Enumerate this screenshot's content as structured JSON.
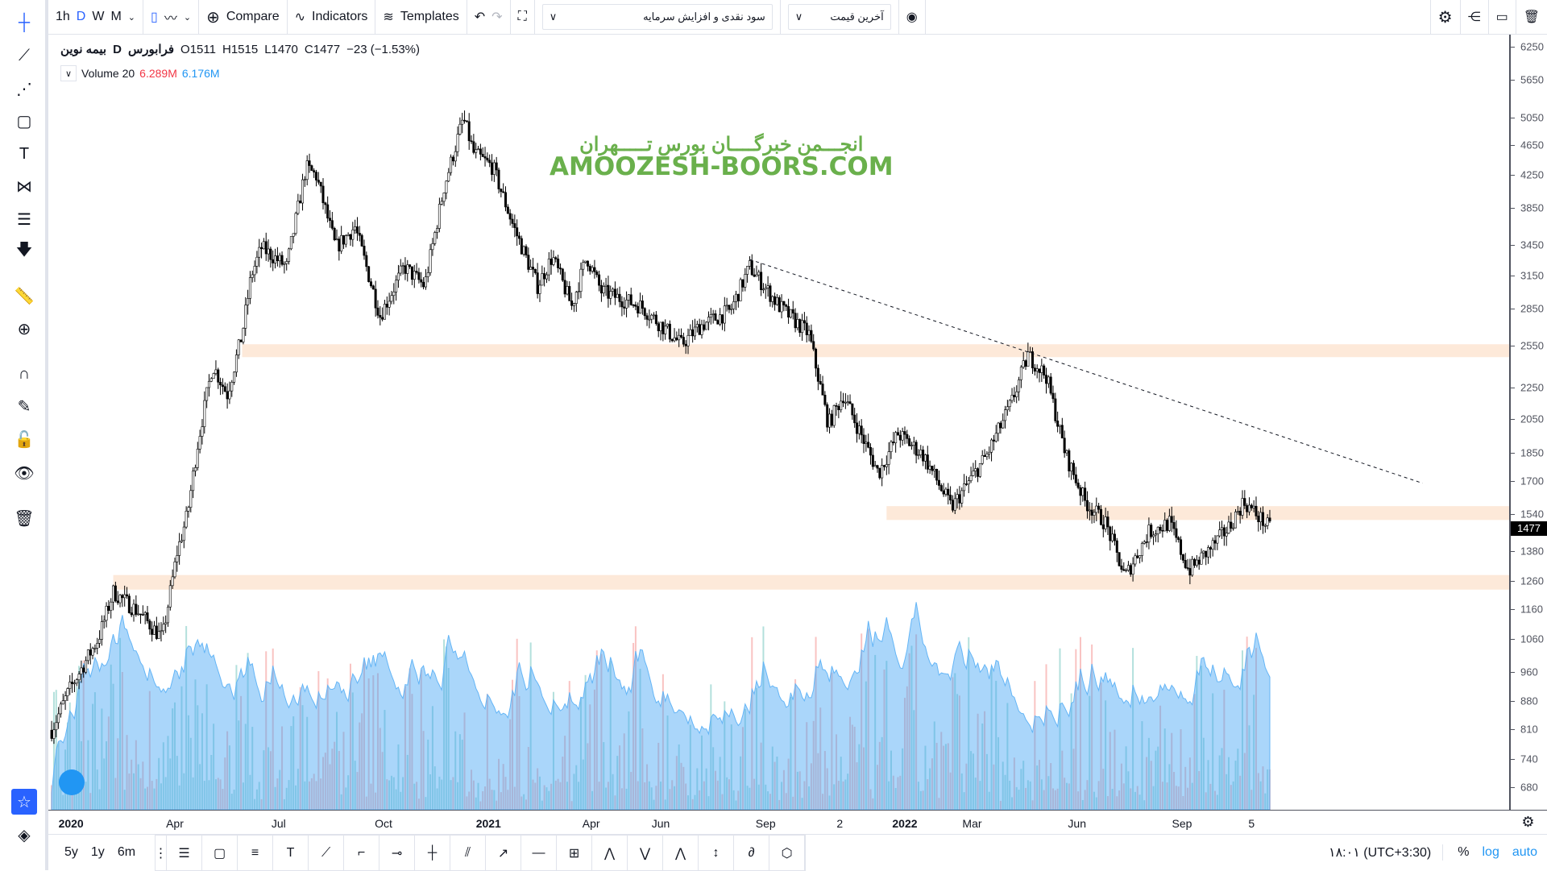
{
  "toolbar": {
    "intervals": [
      "1h",
      "D",
      "W",
      "M"
    ],
    "active_interval": "D",
    "compare": "Compare",
    "indicators": "Indicators",
    "templates": "Templates",
    "indicator_select": "سود نقدی و افزایش سرمایه",
    "price_select": "آخرین قیمت"
  },
  "legend": {
    "symbol": "بیمه نوین",
    "interval": "D",
    "exchange": "فرابورس",
    "open": "O1511",
    "high": "H1515",
    "low": "L1470",
    "close": "C1477",
    "change": "−23 (−1.53%)"
  },
  "volume_legend": {
    "label": "Volume 20",
    "value1": "6.289M",
    "value2": "6.176M",
    "color1": "#f23645",
    "color2": "#2196f3"
  },
  "watermark": {
    "line1": "انجـــمن خبرگــــان بورس تـــــهران",
    "line2": "AMOOZESH-BOORS.COM"
  },
  "price_axis": {
    "scale": "log",
    "ticks": [
      6250,
      5650,
      5050,
      4650,
      4250,
      3850,
      3450,
      3150,
      2850,
      2550,
      2250,
      2050,
      1850,
      1700,
      1540,
      1380,
      1260,
      1160,
      1060,
      960,
      880,
      810,
      740,
      680
    ],
    "last_price": "1477"
  },
  "time_axis": {
    "labels": [
      [
        "2020",
        "2020-01-01"
      ],
      [
        "Apr",
        "2020-04-01"
      ],
      [
        "Jul",
        "2020-07-01"
      ],
      [
        "Oct",
        "2020-10-01"
      ],
      [
        "2021",
        "2021-01-01"
      ],
      [
        "Apr",
        "2021-04-01"
      ],
      [
        "Jun",
        "2021-06-01"
      ],
      [
        "Sep",
        "2021-09-01"
      ],
      [
        "2",
        "2021-11-05"
      ],
      [
        "2022",
        "2022-01-01"
      ],
      [
        "Mar",
        "2022-03-01"
      ],
      [
        "Jun",
        "2022-06-01"
      ],
      [
        "Sep",
        "2022-09-01"
      ],
      [
        "5",
        "2022-11-01"
      ]
    ]
  },
  "chart_data": {
    "type": "candlestick",
    "price_path": [
      [
        "2019-12-15",
        807
      ],
      [
        "2019-12-30",
        907
      ],
      [
        "2020-01-25",
        1062
      ],
      [
        "2020-02-07",
        1220
      ],
      [
        "2020-02-29",
        1150
      ],
      [
        "2020-03-21",
        1062
      ],
      [
        "2020-04-03",
        1374
      ],
      [
        "2020-04-12",
        1540
      ],
      [
        "2020-04-21",
        1900
      ],
      [
        "2020-05-04",
        2410
      ],
      [
        "2020-05-17",
        2205
      ],
      [
        "2020-05-30",
        2640
      ],
      [
        "2020-06-07",
        3150
      ],
      [
        "2020-06-16",
        3420
      ],
      [
        "2020-07-08",
        3230
      ],
      [
        "2020-07-25",
        4350
      ],
      [
        "2020-08-03",
        4240
      ],
      [
        "2020-08-20",
        3420
      ],
      [
        "2020-09-06",
        3640
      ],
      [
        "2020-09-28",
        2790
      ],
      [
        "2020-10-19",
        3230
      ],
      [
        "2020-11-06",
        3050
      ],
      [
        "2020-11-23",
        4100
      ],
      [
        "2020-12-10",
        5040
      ],
      [
        "2020-12-19",
        4540
      ],
      [
        "2021-01-05",
        4350
      ],
      [
        "2021-01-23",
        3640
      ],
      [
        "2021-02-13",
        3050
      ],
      [
        "2021-02-26",
        3330
      ],
      [
        "2021-03-15",
        2870
      ],
      [
        "2021-03-28",
        3330
      ],
      [
        "2021-04-10",
        3000
      ],
      [
        "2021-05-15",
        2870
      ],
      [
        "2021-06-19",
        2560
      ],
      [
        "2021-07-06",
        2710
      ],
      [
        "2021-08-01",
        2830
      ],
      [
        "2021-08-18",
        3230
      ],
      [
        "2021-09-13",
        2870
      ],
      [
        "2021-10-09",
        2640
      ],
      [
        "2021-10-26",
        2015
      ],
      [
        "2021-11-08",
        2200
      ],
      [
        "2021-12-09",
        1740
      ],
      [
        "2021-12-26",
        1960
      ],
      [
        "2022-01-17",
        1840
      ],
      [
        "2022-02-11",
        1570
      ],
      [
        "2022-03-14",
        1840
      ],
      [
        "2022-04-04",
        2140
      ],
      [
        "2022-04-19",
        2480
      ],
      [
        "2022-05-05",
        2330
      ],
      [
        "2022-05-22",
        1840
      ],
      [
        "2022-06-08",
        1600
      ],
      [
        "2022-06-26",
        1500
      ],
      [
        "2022-07-13",
        1276
      ],
      [
        "2022-08-03",
        1460
      ],
      [
        "2022-08-21",
        1500
      ],
      [
        "2022-09-07",
        1300
      ],
      [
        "2022-09-24",
        1380
      ],
      [
        "2022-10-12",
        1480
      ],
      [
        "2022-10-25",
        1600
      ],
      [
        "2022-11-17",
        1477
      ]
    ],
    "zones": [
      {
        "from": "2020-05-30",
        "low": 2465,
        "high": 2562
      },
      {
        "from": "2021-12-16",
        "low": 1514,
        "high": 1578
      },
      {
        "from": "2020-02-07",
        "low": 1229,
        "high": 1284
      }
    ],
    "trendline": [
      [
        "2021-08-18",
        3302
      ],
      [
        "2023-03-31",
        1690
      ]
    ],
    "zone_color": "#fde9d9"
  },
  "bottom": {
    "ranges": [
      "5y",
      "1y",
      "6m"
    ],
    "timezone": "۱۸:۰۱ (UTC+3:30)",
    "percent": "%",
    "log": "log",
    "auto": "auto"
  }
}
